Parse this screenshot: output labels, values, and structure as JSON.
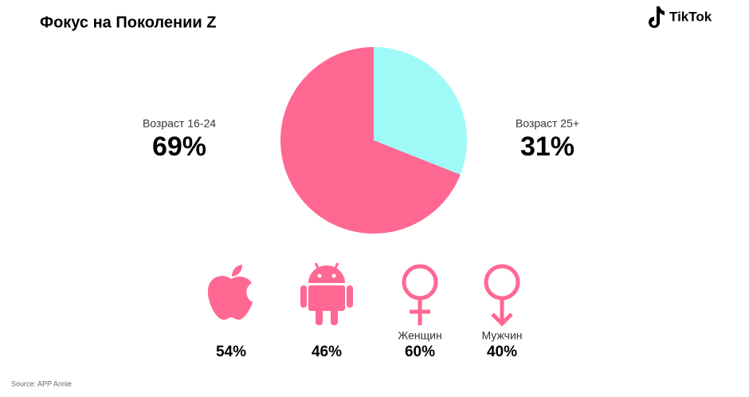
{
  "chart_data": {
    "type": "pie",
    "title": "Фокус на Поколении Z",
    "categories": [
      "Возраст 16-24",
      "Возраст 25+"
    ],
    "values": [
      69,
      31
    ],
    "value_labels": [
      "69%",
      "31%"
    ],
    "colors": [
      "#ff6892",
      "#9ffaf7"
    ]
  },
  "logo": "TikTok",
  "stats": [
    {
      "value": "54%"
    },
    {
      "value": "46%"
    },
    {
      "caption": "Женщин",
      "value": "60%"
    },
    {
      "caption": "Мужчин",
      "value": "40%"
    }
  ],
  "source": "Source: APP Annie"
}
